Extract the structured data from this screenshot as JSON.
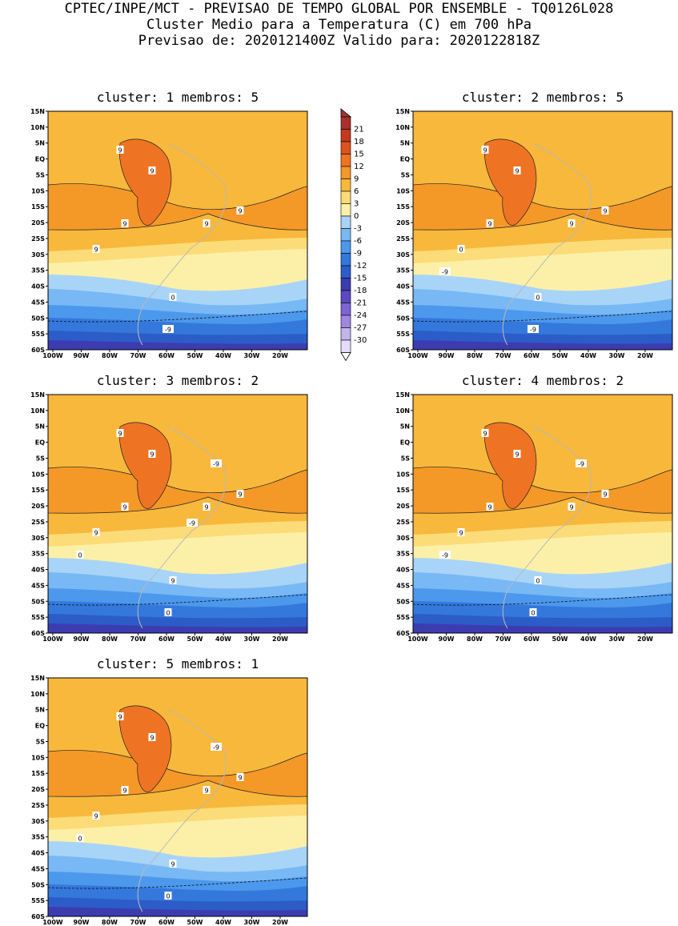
{
  "header": {
    "line1": "CPTEC/INPE/MCT - PREVISAO DE TEMPO GLOBAL POR ENSEMBLE - TQ0126L028",
    "line2": "Cluster Medio para a Temperatura (C) em 700 hPa",
    "line3": "Previsao de: 2020121400Z   Valido para: 2020122818Z"
  },
  "axes": {
    "lat_labels": [
      "15N",
      "10N",
      "5N",
      "EQ",
      "5S",
      "10S",
      "15S",
      "20S",
      "25S",
      "30S",
      "35S",
      "40S",
      "45S",
      "50S",
      "55S",
      "60S"
    ],
    "lon_labels": [
      "100W",
      "90W",
      "80W",
      "70W",
      "60W",
      "50W",
      "40W",
      "30W",
      "20W"
    ]
  },
  "colorbar": {
    "levels": [
      "21",
      "18",
      "15",
      "12",
      "9",
      "6",
      "3",
      "0",
      "-3",
      "-6",
      "-9",
      "-12",
      "-15",
      "-18",
      "-21",
      "-24",
      "-27",
      "-30"
    ],
    "colors": [
      "#a8302e",
      "#c4381e",
      "#e0501c",
      "#ee7424",
      "#f49828",
      "#f8b83c",
      "#fcdc78",
      "#fcf0a8",
      "#a8d4f8",
      "#78b8f4",
      "#4c98ec",
      "#3478dc",
      "#2c5cc8",
      "#3c3cb0",
      "#5c48c0",
      "#7c64d4",
      "#a088e0",
      "#c4b4ec",
      "#e4dcf8"
    ]
  },
  "panels": [
    {
      "title": "cluster: 1   membros: 5",
      "contour_labels": [
        "9",
        "9",
        "9",
        "9",
        "9",
        "9",
        "0",
        "-9"
      ]
    },
    {
      "title": "cluster: 2   membros: 5",
      "contour_labels": [
        "9",
        "9",
        "9",
        "9",
        "9",
        "0",
        "0",
        "-9",
        "-9"
      ]
    },
    {
      "title": "cluster: 3   membros: 2",
      "contour_labels": [
        "9",
        "9",
        "9",
        "9",
        "9",
        "9",
        "9",
        "0",
        "0",
        "-9",
        "-9"
      ]
    },
    {
      "title": "cluster: 4   membros: 2",
      "contour_labels": [
        "9",
        "9",
        "9",
        "9",
        "9",
        "9",
        "0",
        "0",
        "-9",
        "-9"
      ]
    },
    {
      "title": "cluster: 5   membros: 1",
      "contour_labels": [
        "9",
        "9",
        "9",
        "9",
        "9",
        "9",
        "9",
        "0",
        "0",
        "-9"
      ]
    }
  ]
}
